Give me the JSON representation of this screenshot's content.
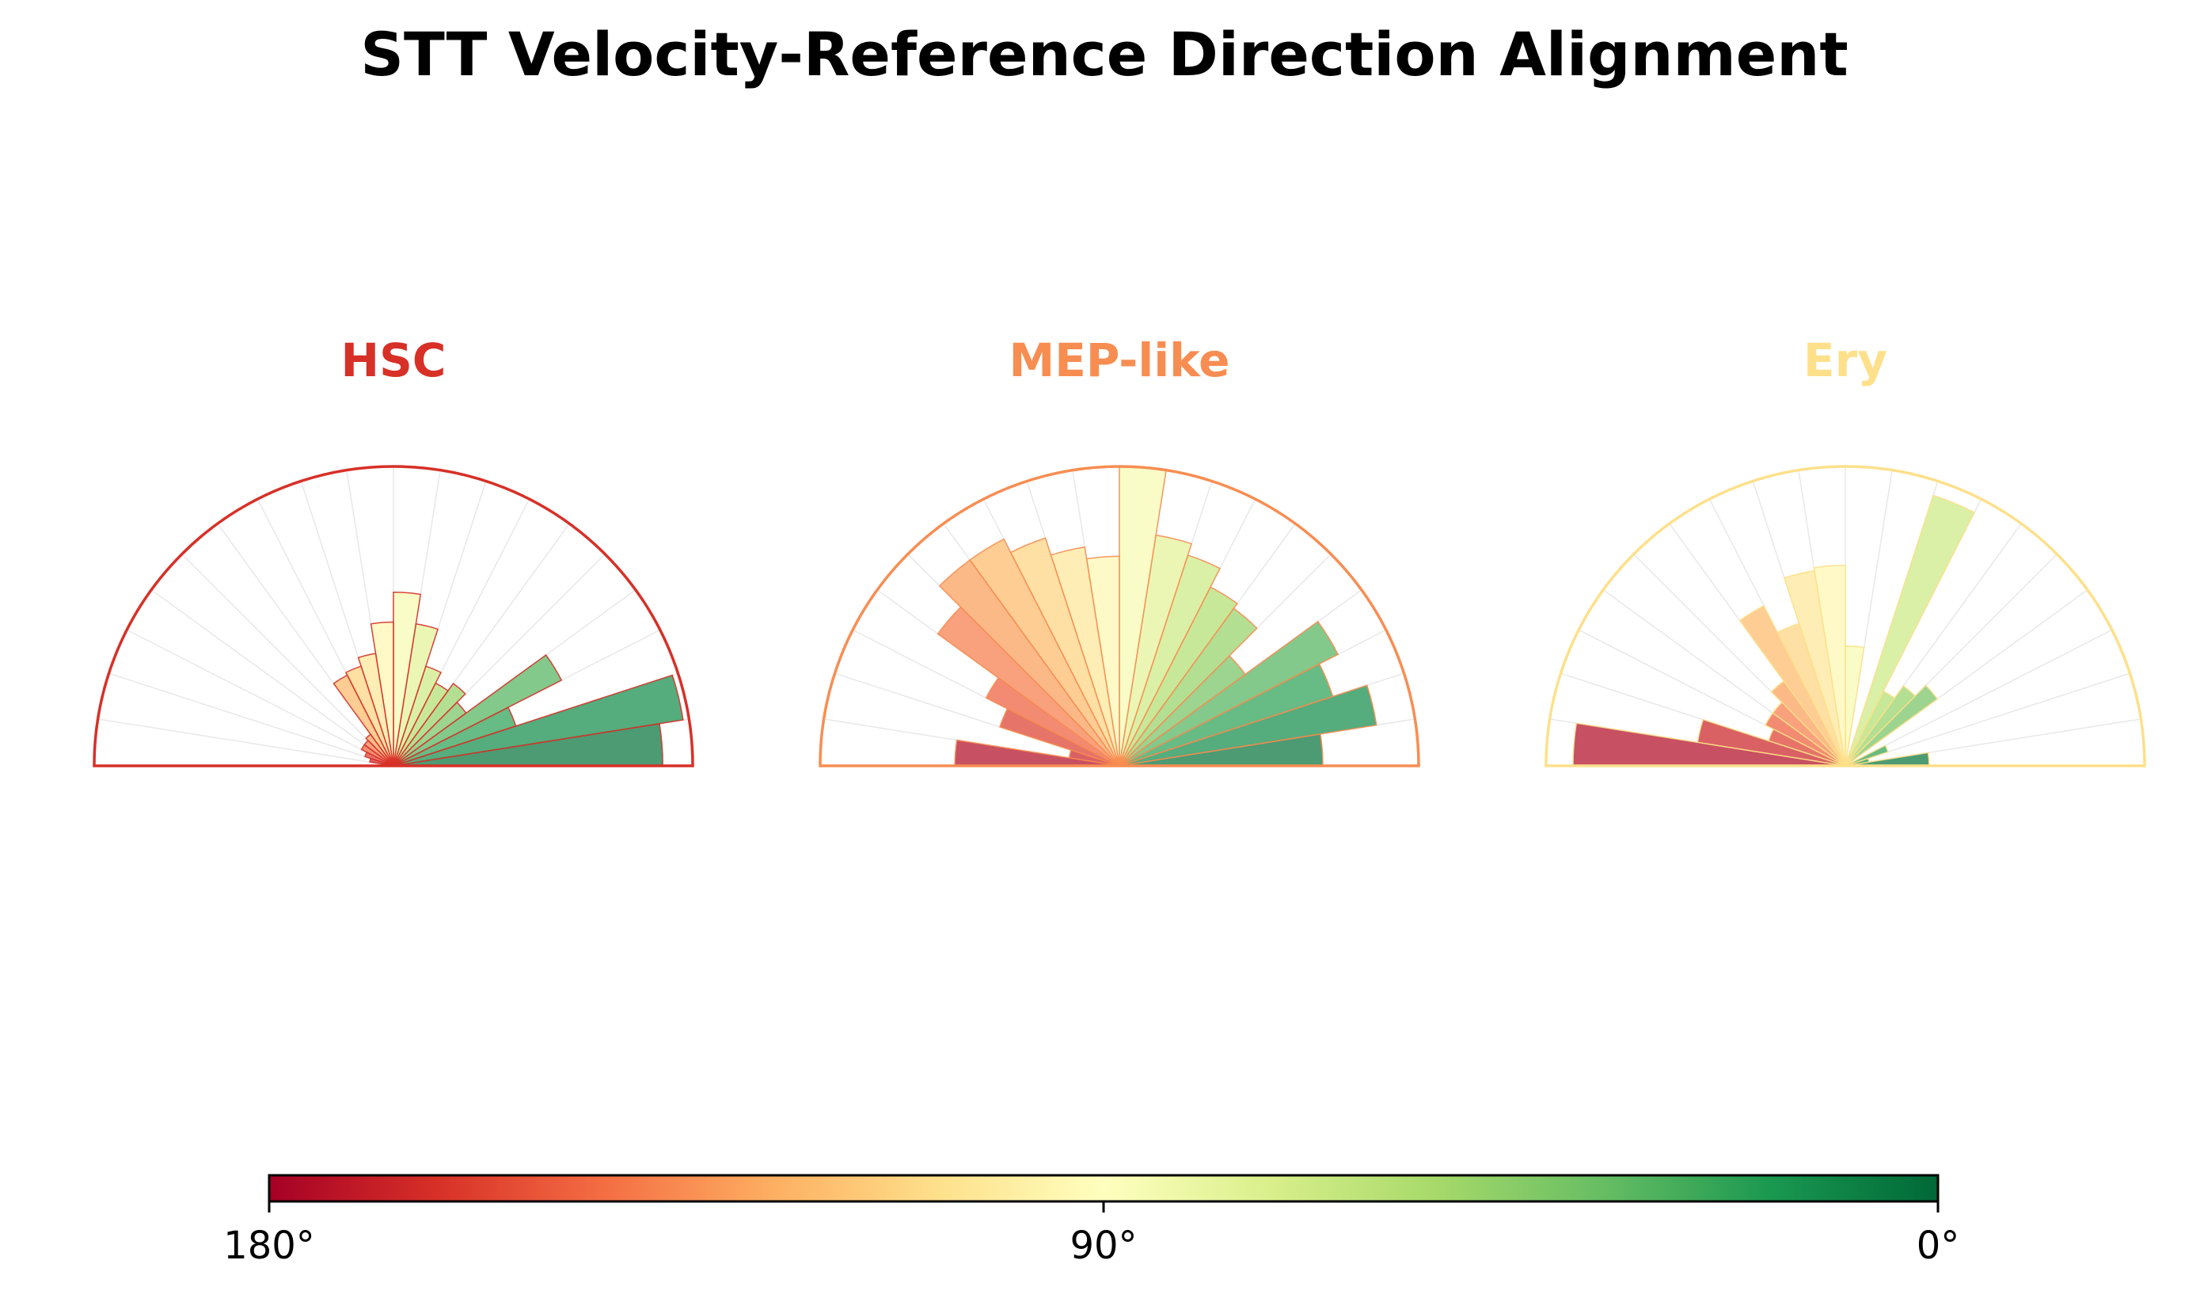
{
  "title": "STT Velocity-Reference Direction Alignment",
  "chart_data": [
    {
      "type": "polar-histogram",
      "title": "HSC",
      "title_color": "#d73027",
      "theta_range_deg": [
        0,
        180
      ],
      "bin_width_deg": 9,
      "bin_centers_deg": [
        4.5,
        13.5,
        22.5,
        31.5,
        40.5,
        49.5,
        58.5,
        67.5,
        76.5,
        85.5,
        94.5,
        103.5,
        112.5,
        121.5,
        130.5,
        139.5,
        148.5,
        157.5,
        166.5,
        175.5
      ],
      "values": [
        0.9,
        0.98,
        0.43,
        0.63,
        0.3,
        0.34,
        0.31,
        0.35,
        0.48,
        0.58,
        0.48,
        0.38,
        0.35,
        0.34,
        0.13,
        0.12,
        0.12,
        0.1,
        0.08,
        0.04
      ],
      "rmax": 1.0
    },
    {
      "type": "polar-histogram",
      "title": "MEP-like",
      "title_color": "#f88d52",
      "theta_range_deg": [
        0,
        180
      ],
      "bin_width_deg": 9,
      "bin_centers_deg": [
        4.5,
        13.5,
        22.5,
        31.5,
        40.5,
        49.5,
        58.5,
        67.5,
        76.5,
        85.5,
        94.5,
        103.5,
        112.5,
        121.5,
        130.5,
        139.5,
        148.5,
        157.5,
        166.5,
        175.5
      ],
      "values": [
        0.68,
        0.87,
        0.75,
        0.82,
        0.52,
        0.65,
        0.67,
        0.74,
        0.78,
        1.0,
        0.7,
        0.74,
        0.8,
        0.85,
        0.85,
        0.75,
        0.5,
        0.42,
        0.17,
        0.55
      ],
      "rmax": 1.0
    },
    {
      "type": "polar-histogram",
      "title": "Ery",
      "title_color": "#fee08b",
      "theta_range_deg": [
        0,
        180
      ],
      "bin_width_deg": 9,
      "bin_centers_deg": [
        4.5,
        13.5,
        22.5,
        31.5,
        40.5,
        49.5,
        58.5,
        67.5,
        76.5,
        85.5,
        94.5,
        103.5,
        112.5,
        121.5,
        130.5,
        139.5,
        148.5,
        157.5,
        166.5,
        175.5
      ],
      "values": [
        0.28,
        0.08,
        0.15,
        0.0,
        0.38,
        0.33,
        0.28,
        0.95,
        0.0,
        0.4,
        0.67,
        0.66,
        0.5,
        0.6,
        0.35,
        0.3,
        0.3,
        0.27,
        0.5,
        0.91
      ],
      "rmax": 1.0
    }
  ],
  "colorbar": {
    "colormap": "RdYlGn",
    "tick_labels": [
      "180°",
      "90°",
      "0°"
    ],
    "range_deg": [
      180,
      0
    ]
  }
}
